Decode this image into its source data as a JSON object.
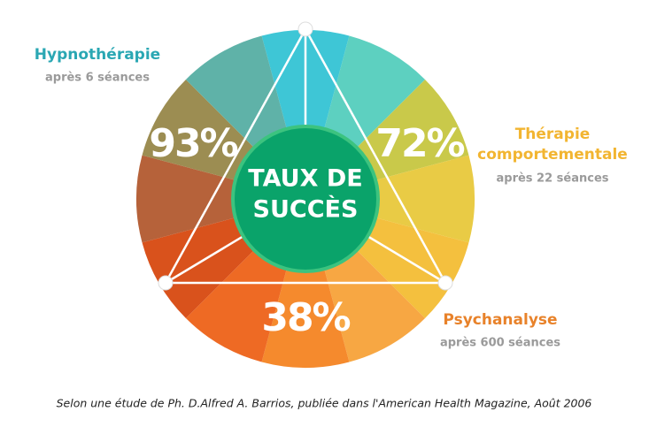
{
  "center": {
    "lines": [
      "TAUX DE",
      "SUCCÈS"
    ]
  },
  "items": [
    {
      "label": [
        "Hypnothérapie"
      ],
      "detail": "après 6 séances",
      "value": "93%"
    },
    {
      "label": [
        "Thérapie",
        "comportementale"
      ],
      "detail": "après 22 séances",
      "value": "72%"
    },
    {
      "label": [
        "Psychanalyse"
      ],
      "detail": "après 600 séances",
      "value": "38%"
    }
  ],
  "caption": "Selon une étude de Ph. D.Alfred A. Barrios, publiée dans l'American Health Magazine, Août 2006"
}
